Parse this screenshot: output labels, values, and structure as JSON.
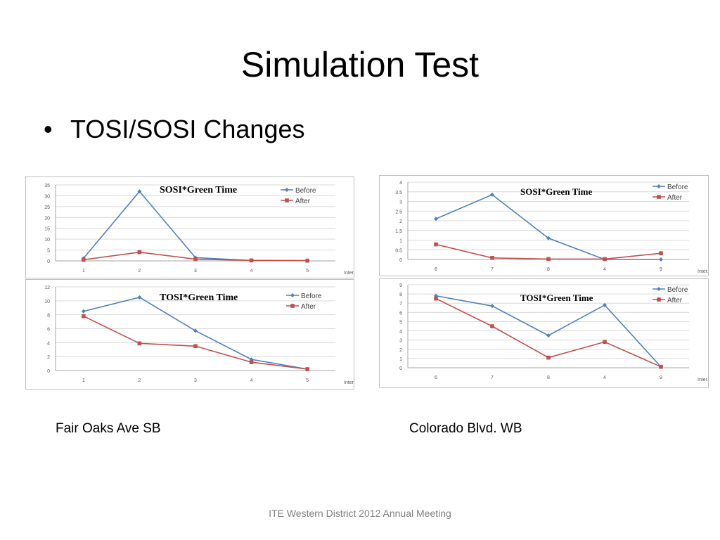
{
  "slide": {
    "title": "Simulation Test",
    "bullet": "TOSI/SOSI Changes",
    "bullet_symbol": "•",
    "caption_left": "Fair Oaks Ave SB",
    "caption_right": "Colorado Blvd. WB",
    "footer": "ITE Western District 2012 Annual Meeting"
  },
  "colors": {
    "before": "#4f81bd",
    "after": "#c0504d"
  },
  "chart_data": [
    {
      "id": "fair-oaks-sosi",
      "type": "line",
      "title": "SOSI*Green Time",
      "categories": [
        "1",
        "2",
        "3",
        "4",
        "5"
      ],
      "xlabel": "Inter. No.",
      "ylim": [
        0,
        35
      ],
      "yticks": [
        0,
        5,
        10,
        15,
        20,
        25,
        30,
        35
      ],
      "series": [
        {
          "name": "Before",
          "values": [
            1.2,
            32,
            1.5,
            0.2,
            0.1
          ]
        },
        {
          "name": "After",
          "values": [
            0.5,
            4,
            0.8,
            0.2,
            0.1
          ]
        }
      ],
      "legend": "top-right",
      "grid": true
    },
    {
      "id": "fair-oaks-tosi",
      "type": "line",
      "title": "TOSI*Green Time",
      "categories": [
        "1",
        "2",
        "3",
        "4",
        "5"
      ],
      "xlabel": "Inter. No.",
      "ylim": [
        0,
        12
      ],
      "yticks": [
        0,
        2,
        4,
        6,
        8,
        10,
        12
      ],
      "series": [
        {
          "name": "Before",
          "values": [
            8.5,
            10.5,
            5.7,
            1.6,
            0.2
          ]
        },
        {
          "name": "After",
          "values": [
            7.8,
            3.9,
            3.5,
            1.2,
            0.2
          ]
        }
      ],
      "legend": "top-right",
      "grid": true
    },
    {
      "id": "colorado-sosi",
      "type": "line",
      "title": "SOSI*Green Time",
      "categories": [
        "6",
        "7",
        "8",
        "4",
        "9"
      ],
      "xlabel": "Inter. No.",
      "ylim": [
        0,
        4
      ],
      "yticks": [
        0,
        0.5,
        1,
        1.5,
        2,
        2.5,
        3,
        3.5,
        4
      ],
      "series": [
        {
          "name": "Before",
          "values": [
            2.1,
            3.35,
            1.1,
            0.0,
            0.0
          ]
        },
        {
          "name": "After",
          "values": [
            0.78,
            0.08,
            0.02,
            0.02,
            0.32
          ]
        }
      ],
      "legend": "top-right",
      "grid": true
    },
    {
      "id": "colorado-tosi",
      "type": "line",
      "title": "TOSI*Green Time",
      "categories": [
        "6",
        "7",
        "8",
        "4",
        "9"
      ],
      "xlabel": "Inter. No.",
      "ylim": [
        0,
        9
      ],
      "yticks": [
        0,
        1,
        2,
        3,
        4,
        5,
        6,
        7,
        8,
        9
      ],
      "series": [
        {
          "name": "Before",
          "values": [
            7.8,
            6.7,
            3.5,
            6.8,
            0.1
          ]
        },
        {
          "name": "After",
          "values": [
            7.5,
            4.5,
            1.1,
            2.8,
            0.1
          ]
        }
      ],
      "legend": "top-right",
      "grid": true
    }
  ]
}
